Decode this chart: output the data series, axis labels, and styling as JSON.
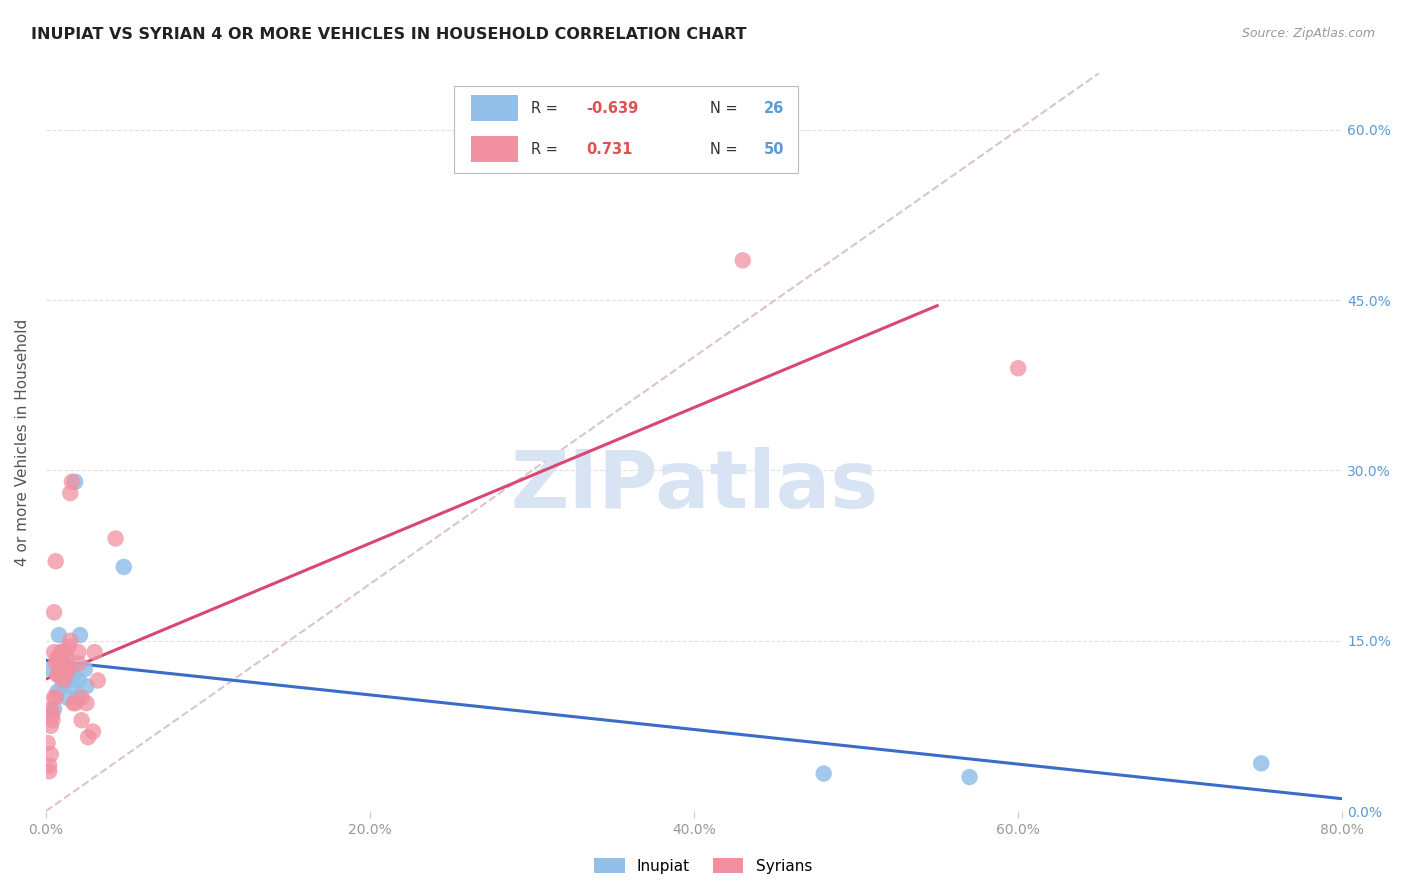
{
  "title": "INUPIAT VS SYRIAN 4 OR MORE VEHICLES IN HOUSEHOLD CORRELATION CHART",
  "source": "Source: ZipAtlas.com",
  "ylabel": "4 or more Vehicles in Household",
  "inupiat_color": "#92C0E8",
  "syrians_color": "#F090A0",
  "inupiat_line_color": "#3A6CC8",
  "syrians_line_color": "#D84870",
  "diagonal_color": "#D8B8C8",
  "watermark_color": "#D8E4F3",
  "background_color": "#FFFFFF",
  "xlim": [
    0.0,
    80.0
  ],
  "ylim": [
    0.0,
    65.0
  ],
  "xtick_vals": [
    0.0,
    20.0,
    40.0,
    60.0,
    80.0
  ],
  "xtick_labels": [
    "0.0%",
    "20.0%",
    "40.0%",
    "60.0%",
    "80.0%"
  ],
  "ytick_vals": [
    0.0,
    15.0,
    30.0,
    45.0,
    60.0
  ],
  "ytick_labels": [
    "0.0%",
    "15.0%",
    "30.0%",
    "45.0%",
    "60.0%"
  ],
  "inupiat_x": [
    0.3,
    0.5,
    0.7,
    0.8,
    0.8,
    1.0,
    1.0,
    1.0,
    1.1,
    1.2,
    1.3,
    1.3,
    1.5,
    1.5,
    1.6,
    1.6,
    1.7,
    1.8,
    2.0,
    2.0,
    2.1,
    2.4,
    2.5,
    4.8,
    48.0,
    57.0,
    75.0
  ],
  "inupiat_y": [
    12.5,
    9.0,
    10.5,
    15.5,
    12.0,
    13.5,
    13.0,
    11.0,
    14.0,
    11.5,
    11.5,
    10.0,
    12.5,
    12.0,
    12.5,
    11.0,
    12.0,
    29.0,
    11.5,
    10.0,
    15.5,
    12.5,
    11.0,
    21.5,
    3.3,
    3.0,
    4.2
  ],
  "syrians_x": [
    0.1,
    0.2,
    0.2,
    0.3,
    0.3,
    0.3,
    0.4,
    0.4,
    0.5,
    0.5,
    0.5,
    0.6,
    0.6,
    0.6,
    0.7,
    0.7,
    0.8,
    0.8,
    0.8,
    0.9,
    0.9,
    1.0,
    1.0,
    1.0,
    1.0,
    1.1,
    1.1,
    1.2,
    1.2,
    1.3,
    1.3,
    1.4,
    1.4,
    1.5,
    1.5,
    1.6,
    1.7,
    1.8,
    2.0,
    2.0,
    2.2,
    2.2,
    2.5,
    2.6,
    2.9,
    3.0,
    3.2,
    4.3,
    43.0,
    60.0
  ],
  "syrians_y": [
    6.0,
    4.0,
    3.5,
    5.0,
    7.5,
    9.0,
    8.0,
    8.5,
    14.0,
    10.0,
    17.5,
    13.0,
    10.0,
    22.0,
    12.0,
    13.5,
    12.0,
    13.5,
    13.0,
    14.0,
    13.0,
    13.0,
    14.0,
    12.0,
    13.0,
    12.5,
    11.5,
    13.0,
    12.0,
    13.5,
    12.5,
    14.5,
    12.5,
    15.0,
    28.0,
    29.0,
    9.5,
    9.5,
    14.0,
    13.0,
    10.0,
    8.0,
    9.5,
    6.5,
    7.0,
    14.0,
    11.5,
    24.0,
    48.5,
    39.0
  ]
}
